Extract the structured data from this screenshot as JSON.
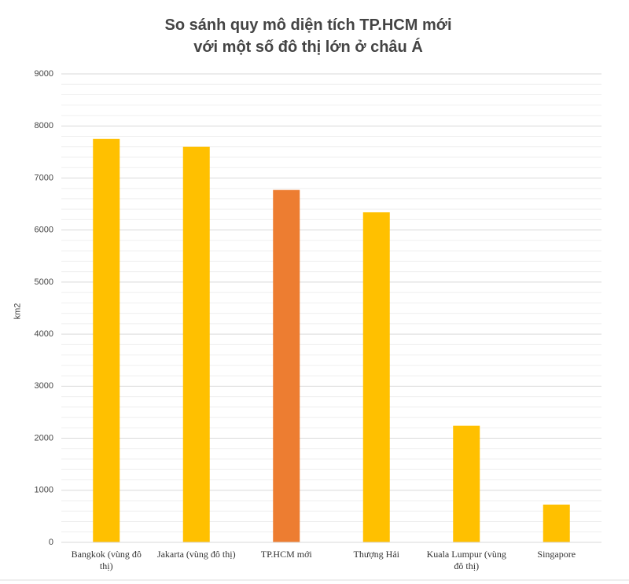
{
  "chart_data": {
    "type": "bar",
    "title": "So sánh quy mô diện tích TP.HCM mới với một số đô thị lớn ở châu Á",
    "y_label": "km2",
    "categories": [
      "Bangkok (vùng đô thị)",
      "Jakarta (vùng đô thị)",
      "TP.HCM mới",
      "Thượng Hải",
      "Kuala Lumpur (vùng đô thị)",
      "Singapore"
    ],
    "values": [
      7750,
      7600,
      6770,
      6340,
      2240,
      725
    ],
    "colors": [
      "#ffc000",
      "#ffc000",
      "#ed7d31",
      "#ffc000",
      "#ffc000",
      "#ffc000"
    ],
    "ylim": [
      0,
      9000
    ],
    "yticks": [
      0,
      1000,
      2000,
      3000,
      4000,
      5000,
      6000,
      7000,
      8000,
      9000
    ],
    "grid": true,
    "minor_grid": true
  }
}
